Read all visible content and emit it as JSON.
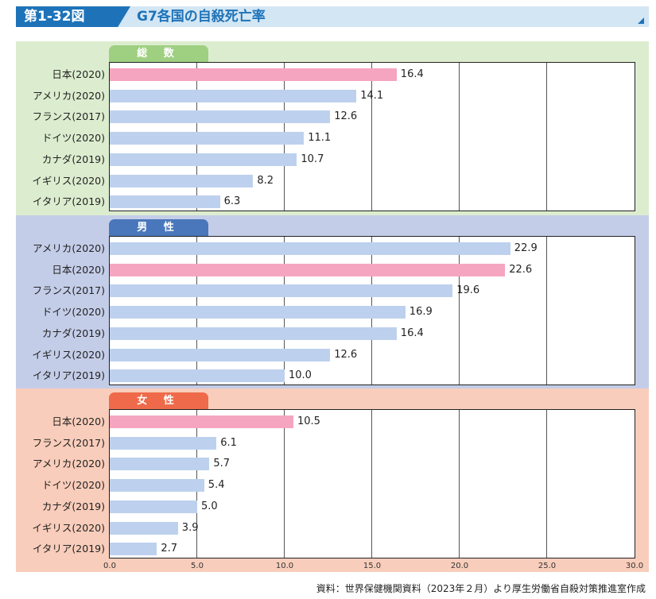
{
  "header": {
    "figure_label": "第1-32図",
    "title": "G7各国の自殺死亡率"
  },
  "source": "資料：世界保健機関資料（2023年２月）より厚生労働省自殺対策推進室作成",
  "colors": {
    "japan_bar": "#f6a5c0",
    "other_bar": "#bdd1ee",
    "accent": "#1e73b8"
  },
  "chart_data": {
    "type": "bar",
    "orientation": "horizontal",
    "xlim": [
      0,
      30
    ],
    "ticks": [
      "0.0",
      "5.0",
      "10.0",
      "15.0",
      "20.0",
      "25.0",
      "30.0"
    ],
    "grid": true,
    "panels": [
      {
        "label": "総 数",
        "categories": [
          "日本(2020)",
          "アメリカ(2020)",
          "フランス(2017)",
          "ドイツ(2020)",
          "カナダ(2019)",
          "イギリス(2020)",
          "イタリア(2019)"
        ],
        "values": [
          16.4,
          14.1,
          12.6,
          11.1,
          10.7,
          8.2,
          6.3
        ],
        "labels": [
          "16.4",
          "14.1",
          "12.6",
          "11.1",
          "10.7",
          "8.2",
          "6.3"
        ]
      },
      {
        "label": "男 性",
        "categories": [
          "アメリカ(2020)",
          "日本(2020)",
          "フランス(2017)",
          "ドイツ(2020)",
          "カナダ(2019)",
          "イギリス(2020)",
          "イタリア(2019)"
        ],
        "values": [
          22.9,
          22.6,
          19.6,
          16.9,
          16.4,
          12.6,
          10.0
        ],
        "labels": [
          "22.9",
          "22.6",
          "19.6",
          "16.9",
          "16.4",
          "12.6",
          "10.0"
        ]
      },
      {
        "label": "女 性",
        "categories": [
          "日本(2020)",
          "フランス(2017)",
          "アメリカ(2020)",
          "ドイツ(2020)",
          "カナダ(2019)",
          "イギリス(2020)",
          "イタリア(2019)"
        ],
        "values": [
          10.5,
          6.1,
          5.7,
          5.4,
          5.0,
          3.9,
          2.7
        ],
        "labels": [
          "10.5",
          "6.1",
          "5.7",
          "5.4",
          "5.0",
          "3.9",
          "2.7"
        ]
      }
    ]
  }
}
